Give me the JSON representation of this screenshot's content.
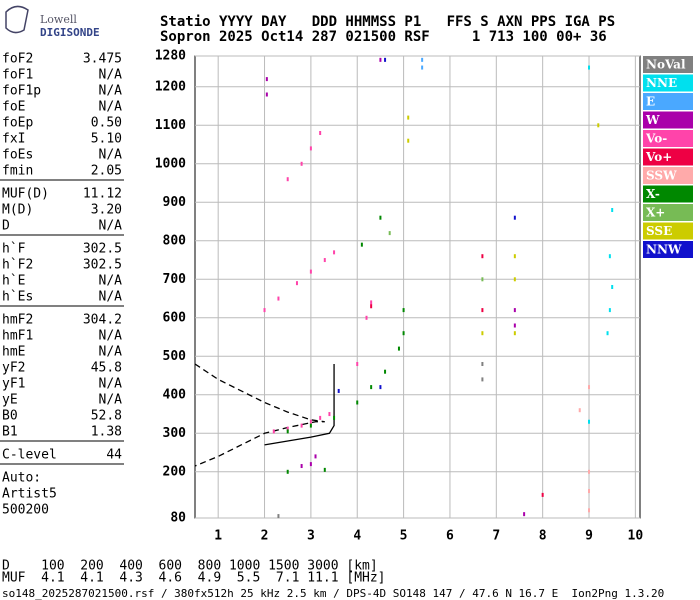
{
  "logo": {
    "top": "Lowell",
    "bottom": "DIGISONDE"
  },
  "header": [
    "Statio YYYY DAY   DDD HHMMSS P1   FFS S AXN PPS IGA PS",
    "Sopron 2025 Oct14 287 021500 RSF     1 713 100 00+ 36"
  ],
  "params": [
    [
      [
        "foF2",
        "3.475"
      ],
      [
        "foF1",
        "N/A"
      ],
      [
        "foF1p",
        "N/A"
      ],
      [
        "foE",
        "N/A"
      ],
      [
        "foEp",
        "0.50"
      ],
      [
        "fxI",
        "5.10"
      ],
      [
        "foEs",
        "N/A"
      ],
      [
        "fmin",
        "2.05"
      ]
    ],
    [
      [
        "MUF(D)",
        "11.12"
      ],
      [
        "M(D)",
        "3.20"
      ],
      [
        "D",
        "N/A"
      ]
    ],
    [
      [
        "h`F",
        "302.5"
      ],
      [
        "h`F2",
        "302.5"
      ],
      [
        "h`E",
        "N/A"
      ],
      [
        "h`Es",
        "N/A"
      ]
    ],
    [
      [
        "hmF2",
        "304.2"
      ],
      [
        "hmF1",
        "N/A"
      ],
      [
        "hmE",
        "N/A"
      ],
      [
        "yF2",
        "45.8"
      ],
      [
        "yF1",
        "N/A"
      ],
      [
        "yE",
        "N/A"
      ],
      [
        "B0",
        "52.8"
      ],
      [
        "B1",
        "1.38"
      ]
    ],
    [
      [
        "C-level",
        "44"
      ]
    ]
  ],
  "notes": [
    "Auto:",
    "Artist5",
    "500200"
  ],
  "bottom": [
    "D    100  200  400  600  800 1000 1500 3000 [km]",
    "MUF  4.1  4.1  4.3  4.6  4.9  5.5  7.1 11.1 [MHz]",
    "so148_2025287021500.rsf / 380fx512h 25 kHz 2.5 km / DPS-4D SO148 147 / 47.6 N 16.7 E  Ion2Png 1.3.20"
  ],
  "chart_data": {
    "type": "scatter",
    "xlim": [
      0.5,
      10.1
    ],
    "ylim": [
      80,
      1280
    ],
    "xticks": [
      1,
      2,
      3,
      4,
      5,
      6,
      7,
      8,
      9,
      10
    ],
    "yticks": [
      80,
      200,
      300,
      400,
      500,
      600,
      700,
      800,
      900,
      1000,
      1100,
      1200,
      1280
    ],
    "grid": true,
    "series": [
      {
        "name": "NoVal",
        "color": "#808080",
        "x": [
          6.7,
          2.3,
          6.7
        ],
        "y": [
          440,
          85,
          480
        ]
      },
      {
        "name": "NNE",
        "color": "#00e0ee",
        "x": [
          9.4,
          9.45,
          9.5,
          9.5,
          9.0,
          9.0,
          9.45
        ],
        "y": [
          560,
          620,
          680,
          880,
          1250,
          330,
          760
        ]
      },
      {
        "name": "E",
        "color": "#4aa8ff",
        "x": [
          5.4,
          5.4
        ],
        "y": [
          1250,
          1270
        ]
      },
      {
        "name": "W",
        "color": "#aa00aa",
        "x": [
          2.05,
          2.05,
          3.0,
          3.1,
          7.4,
          7.4,
          4.5,
          7.6,
          2.8
        ],
        "y": [
          1220,
          1180,
          220,
          240,
          620,
          580,
          1270,
          90,
          215
        ]
      },
      {
        "name": "Vo-",
        "color": "#ff44aa",
        "x": [
          2.2,
          2.5,
          2.8,
          3.0,
          3.2,
          3.4,
          2.0,
          2.3,
          2.7,
          3.0,
          3.3,
          3.5,
          2.5,
          2.8,
          3.0,
          3.2,
          4.0,
          4.2,
          4.3
        ],
        "y": [
          305,
          312,
          320,
          330,
          340,
          350,
          620,
          650,
          690,
          720,
          750,
          770,
          960,
          1000,
          1040,
          1080,
          480,
          600,
          640
        ]
      },
      {
        "name": "Vo+",
        "color": "#ee0044",
        "x": [
          6.7,
          6.7,
          4.3,
          8.0
        ],
        "y": [
          760,
          620,
          630,
          140
        ]
      },
      {
        "name": "SSW",
        "color": "#ffaaaa",
        "x": [
          9.0,
          9.0,
          9.0,
          8.8,
          9.0
        ],
        "y": [
          200,
          150,
          100,
          360,
          420
        ]
      },
      {
        "name": "X-",
        "color": "#008800",
        "x": [
          2.5,
          3.0,
          3.5,
          4.0,
          4.3,
          4.6,
          4.9,
          5.0,
          5.0,
          4.1,
          4.5,
          2.5,
          3.3
        ],
        "y": [
          305,
          320,
          340,
          380,
          420,
          460,
          520,
          560,
          620,
          790,
          860,
          200,
          205
        ]
      },
      {
        "name": "X+",
        "color": "#77bb55",
        "x": [
          6.7,
          4.7
        ],
        "y": [
          700,
          820
        ]
      },
      {
        "name": "SSE",
        "color": "#cccc00",
        "x": [
          5.1,
          5.1,
          7.4,
          7.4,
          6.7,
          7.4,
          9.2
        ],
        "y": [
          1120,
          1060,
          700,
          760,
          560,
          560,
          1100
        ]
      },
      {
        "name": "NNW",
        "color": "#1111cc",
        "x": [
          3.6,
          4.5,
          7.4,
          4.6
        ],
        "y": [
          410,
          420,
          860,
          1270
        ]
      }
    ],
    "lines": [
      {
        "style": "dashed",
        "color": "#000",
        "x": [
          0.5,
          1.0,
          1.5,
          2.0,
          2.5,
          3.0,
          3.3,
          3.1,
          2.5,
          2.0,
          1.5,
          1.0,
          0.5
        ],
        "y": [
          480,
          440,
          410,
          380,
          355,
          335,
          330,
          330,
          315,
          300,
          270,
          240,
          215
        ]
      },
      {
        "style": "solid",
        "color": "#000",
        "x": [
          2.0,
          2.5,
          3.0,
          3.4,
          3.5,
          3.5,
          3.5
        ],
        "y": [
          270,
          280,
          290,
          300,
          320,
          400,
          480
        ]
      }
    ]
  }
}
